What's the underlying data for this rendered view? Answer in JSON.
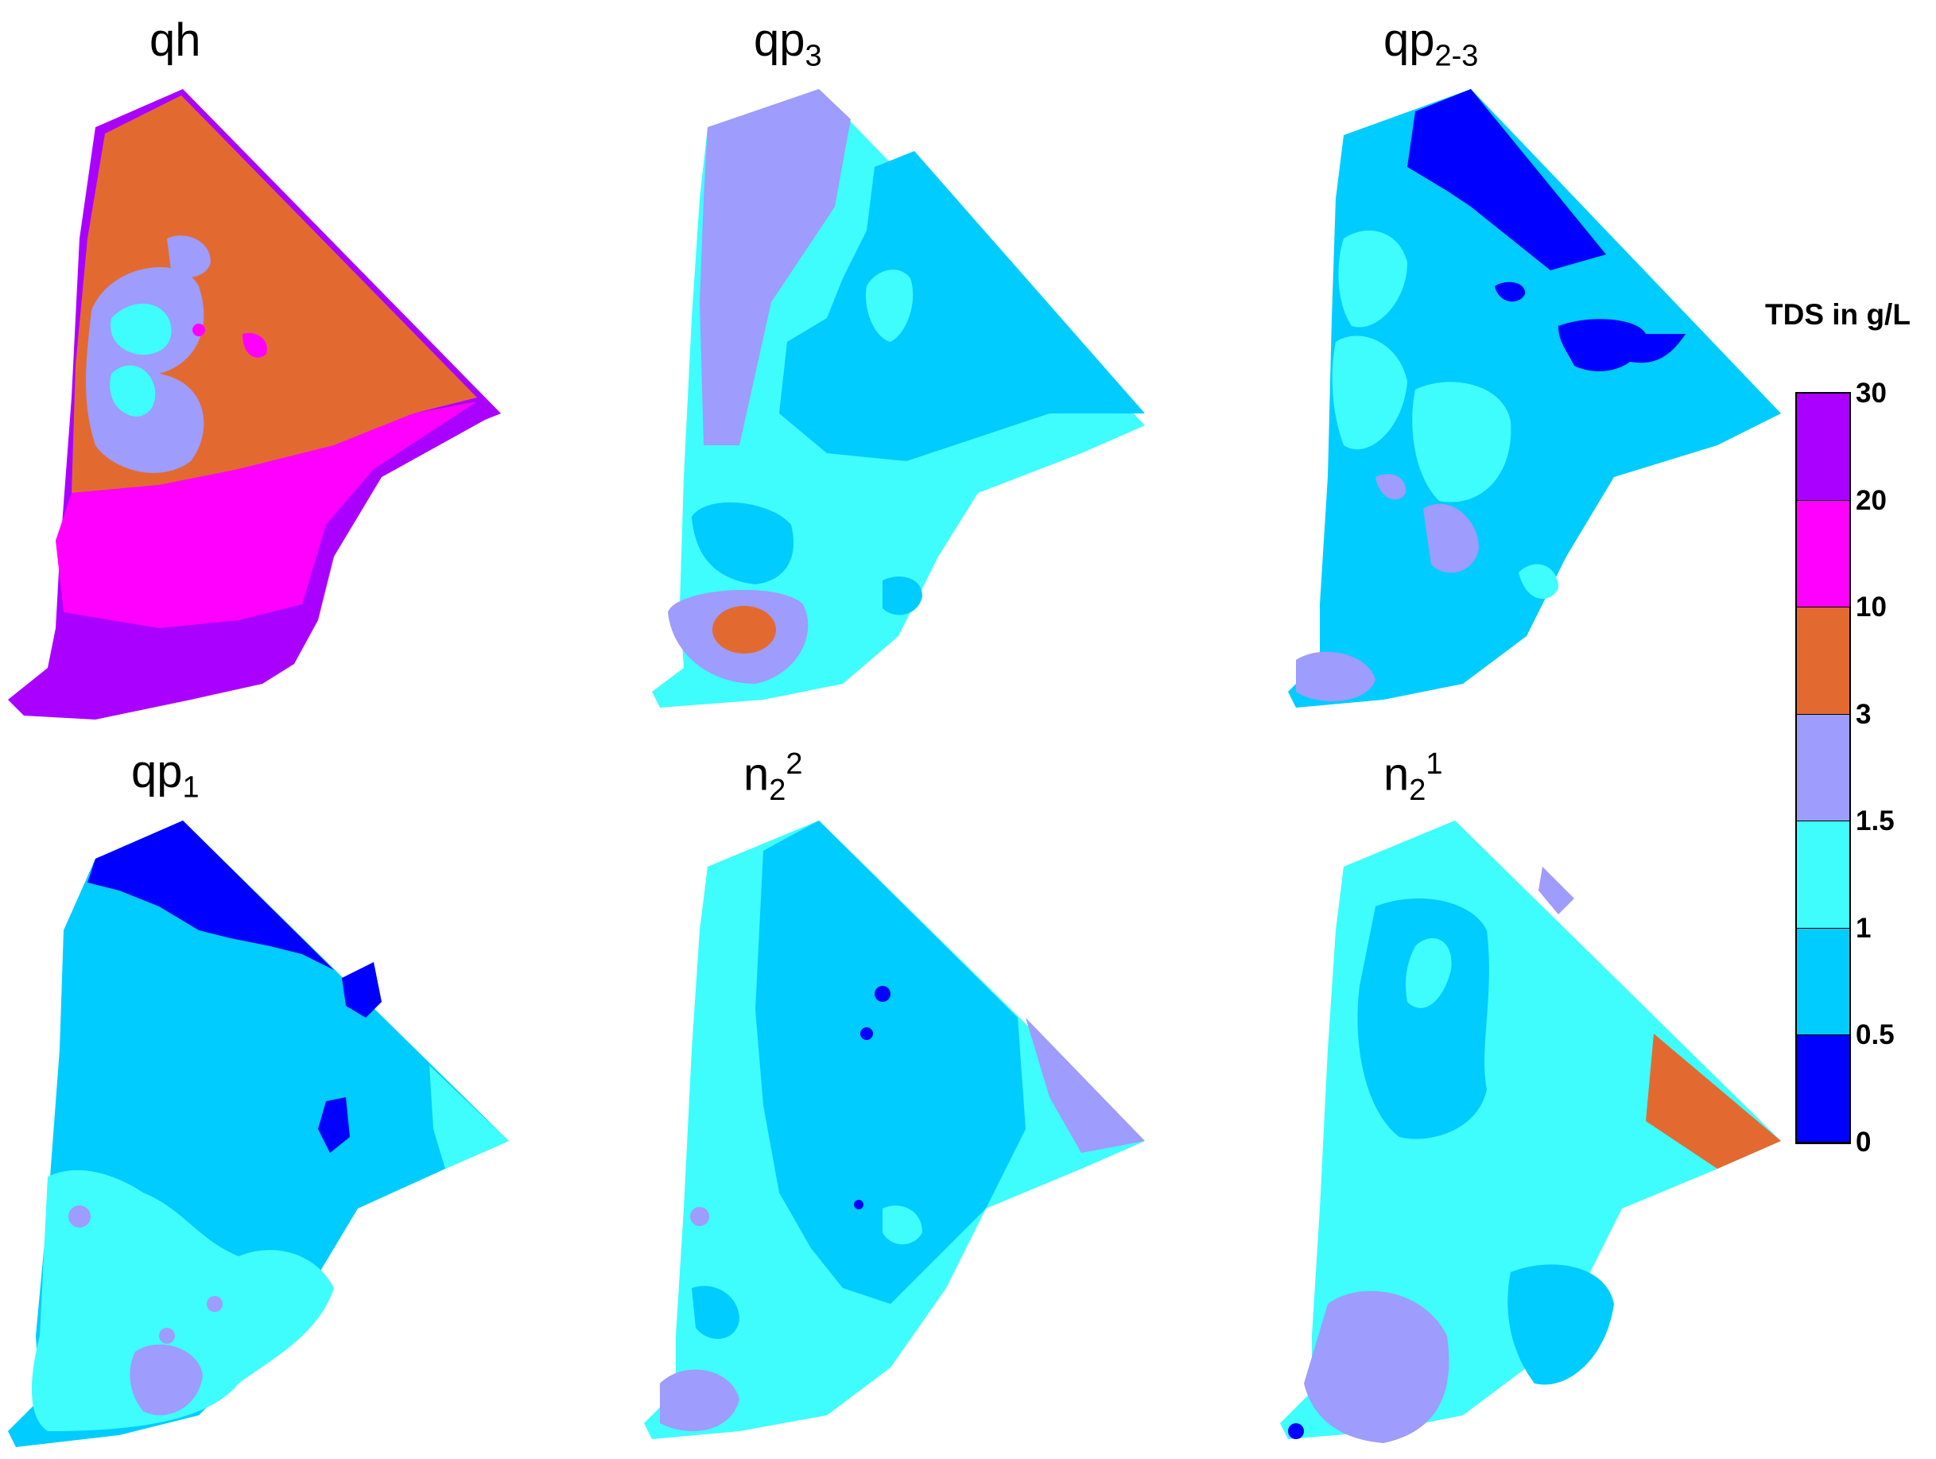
{
  "legend": {
    "title": "TDS in g/L",
    "classes": [
      {
        "from": "20",
        "to": "30",
        "color": "#aa00ff"
      },
      {
        "from": "10",
        "to": "20",
        "color": "#ff00ff"
      },
      {
        "from": "3",
        "to": "10",
        "color": "#e26a31"
      },
      {
        "from": "1.5",
        "to": "3",
        "color": "#9e9cfc"
      },
      {
        "from": "1",
        "to": "1.5",
        "color": "#3ffdfd"
      },
      {
        "from": "0.5",
        "to": "1",
        "color": "#00ccff"
      },
      {
        "from": "0",
        "to": "0.5",
        "color": "#0000ff"
      }
    ],
    "ticks": [
      "30",
      "20",
      "10",
      "3",
      "1.5",
      "1",
      "0.5",
      "0"
    ]
  },
  "panels": [
    {
      "id": "qh",
      "base": "qh",
      "sub": "",
      "sup": "",
      "dominant": "#e26a31"
    },
    {
      "id": "qp3",
      "base": "qp",
      "sub": "3",
      "sup": "",
      "dominant": "#00ccff"
    },
    {
      "id": "qp23",
      "base": "qp",
      "sub": "2-3",
      "sup": "",
      "dominant": "#00ccff"
    },
    {
      "id": "qp1",
      "base": "qp",
      "sub": "1",
      "sup": "",
      "dominant": "#00ccff"
    },
    {
      "id": "n22",
      "base": "n",
      "sub": "2",
      "sup": "2",
      "dominant": "#00ccff"
    },
    {
      "id": "n21",
      "base": "n",
      "sub": "2",
      "sup": "1",
      "dominant": "#3ffdfd"
    }
  ]
}
